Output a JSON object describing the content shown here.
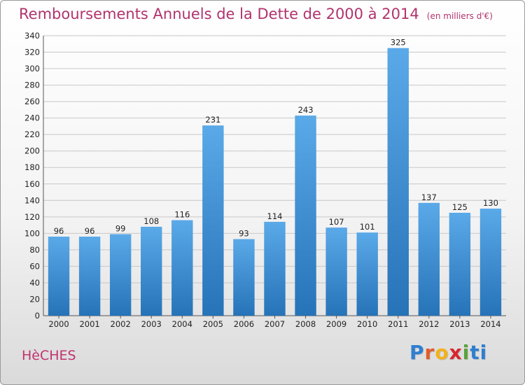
{
  "title": "Remboursements Annuels de la Dette de 2000 à 2014",
  "unit_label": "(en milliers d'€)",
  "commune": "HèCHES",
  "logo": {
    "letters": [
      "P",
      "r",
      "o",
      "x",
      "i",
      "t",
      "i"
    ],
    "brand": "Proxiti"
  },
  "colors": {
    "bar_top": "#5aa9e8",
    "bar_bottom": "#2673b8",
    "title": "#b1336d",
    "grid": "#c8c8c8"
  },
  "chart_data": {
    "type": "bar",
    "categories": [
      "2000",
      "2001",
      "2002",
      "2003",
      "2004",
      "2005",
      "2006",
      "2007",
      "2008",
      "2009",
      "2010",
      "2011",
      "2012",
      "2013",
      "2014"
    ],
    "values": [
      96,
      96,
      99,
      108,
      116,
      231,
      93,
      114,
      243,
      107,
      101,
      325,
      137,
      125,
      130
    ],
    "ylim": [
      0,
      340
    ],
    "yticks": [
      0,
      20,
      40,
      60,
      80,
      100,
      120,
      140,
      160,
      180,
      200,
      220,
      240,
      260,
      280,
      300,
      320,
      340
    ],
    "grid": true,
    "xlabel": "",
    "ylabel": ""
  }
}
